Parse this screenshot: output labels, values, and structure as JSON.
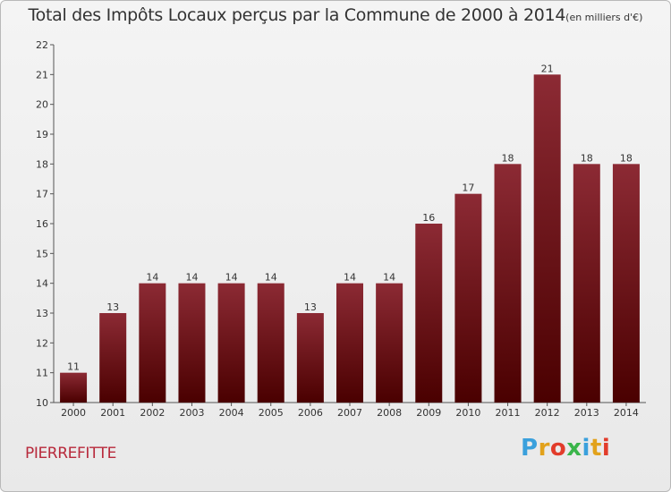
{
  "chart_data": {
    "type": "bar",
    "title": "Total des Impôts Locaux perçus par la Commune de 2000 à 2014",
    "unit_label": "(en milliers d'€)",
    "categories": [
      "2000",
      "2001",
      "2002",
      "2003",
      "2004",
      "2005",
      "2006",
      "2007",
      "2008",
      "2009",
      "2010",
      "2011",
      "2012",
      "2013",
      "2014"
    ],
    "values": [
      11,
      13,
      14,
      14,
      14,
      14,
      13,
      14,
      14,
      16,
      17,
      18,
      21,
      18,
      18
    ],
    "ylim": [
      10,
      22
    ],
    "yticks": [
      10,
      11,
      12,
      13,
      14,
      15,
      16,
      17,
      18,
      19,
      20,
      21,
      22
    ],
    "xlabel": "",
    "ylabel": "",
    "grid": false,
    "bar_color_top": "#8c2a34",
    "bar_color_bottom": "#4a0000"
  },
  "footer": {
    "commune": "PIERREFITTE",
    "brand": "Proxiti",
    "brand_colors": [
      "#3aa0dc",
      "#e2a21b",
      "#e23c2b",
      "#3ab54a",
      "#3aa0dc",
      "#e2a21b",
      "#e23c2b"
    ]
  }
}
